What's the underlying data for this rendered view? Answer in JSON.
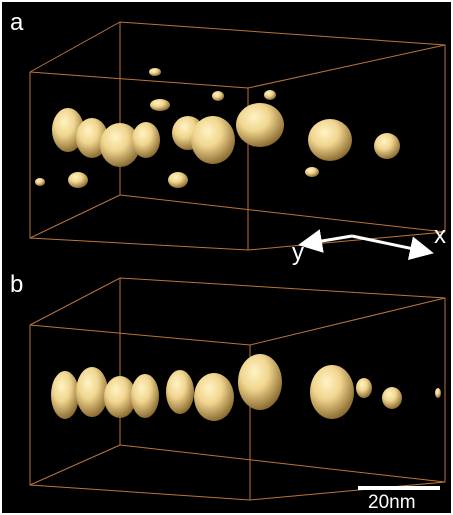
{
  "panels": [
    {
      "label": "a"
    },
    {
      "label": "b"
    }
  ],
  "axes": {
    "y": "y",
    "x": "x"
  },
  "scale_bar": "20nm"
}
